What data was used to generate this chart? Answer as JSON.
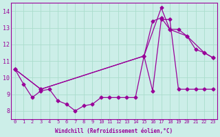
{
  "xlabel": "Windchill (Refroidissement éolien,°C)",
  "bg_color": "#cceee8",
  "grid_color": "#aaddcc",
  "line_color": "#990099",
  "xlim": [
    -0.5,
    23.5
  ],
  "ylim": [
    7.5,
    14.5
  ],
  "yticks": [
    8,
    9,
    10,
    11,
    12,
    13,
    14
  ],
  "xticks": [
    0,
    1,
    2,
    3,
    4,
    5,
    6,
    7,
    8,
    9,
    10,
    11,
    12,
    13,
    14,
    15,
    16,
    17,
    18,
    19,
    20,
    21,
    22,
    23
  ],
  "line1_x": [
    0,
    1,
    2,
    3,
    4,
    5,
    6,
    7,
    8,
    9,
    10,
    11,
    12,
    13,
    14,
    15,
    16,
    17,
    18,
    19,
    20,
    21,
    22,
    23
  ],
  "line1_y": [
    10.5,
    9.6,
    8.8,
    9.2,
    9.3,
    8.6,
    8.4,
    8.0,
    8.3,
    8.4,
    8.8,
    8.8,
    8.8,
    8.8,
    8.8,
    11.3,
    9.2,
    13.5,
    13.5,
    9.3,
    9.3,
    9.3,
    9.3,
    9.3
  ],
  "line2_x": [
    0,
    3,
    15,
    16,
    17,
    18,
    19,
    20,
    21,
    22,
    23
  ],
  "line2_y": [
    10.5,
    9.3,
    11.3,
    13.4,
    13.6,
    12.9,
    12.9,
    12.5,
    11.7,
    11.5,
    11.2
  ],
  "line3_x": [
    0,
    3,
    15,
    17,
    18,
    20,
    22,
    23
  ],
  "line3_y": [
    10.5,
    9.3,
    11.3,
    14.2,
    12.9,
    12.5,
    11.5,
    11.2
  ]
}
